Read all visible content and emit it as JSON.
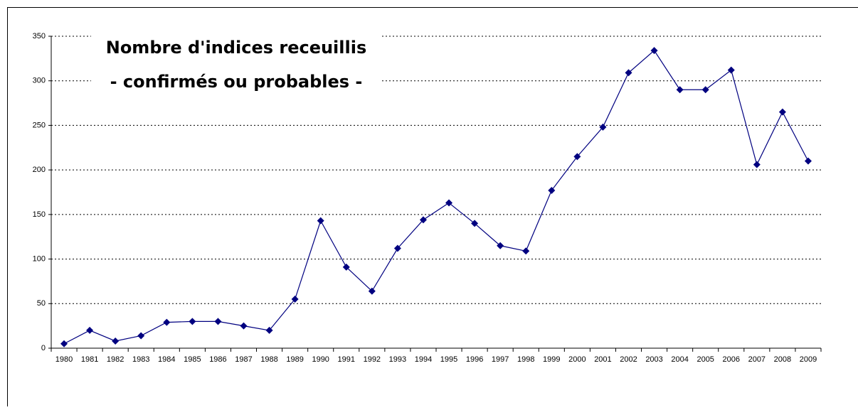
{
  "chart_data": {
    "type": "line",
    "title": "Nombre d'indices receuillis",
    "subtitle": "- confirmés ou probables -",
    "categories": [
      "1980",
      "1981",
      "1982",
      "1983",
      "1984",
      "1985",
      "1986",
      "1987",
      "1988",
      "1989",
      "1990",
      "1991",
      "1992",
      "1993",
      "1994",
      "1995",
      "1996",
      "1997",
      "1998",
      "1999",
      "2000",
      "2001",
      "2002",
      "2003",
      "2004",
      "2005",
      "2006",
      "2007",
      "2008",
      "2009"
    ],
    "values": [
      5,
      20,
      8,
      14,
      29,
      30,
      30,
      25,
      20,
      55,
      143,
      91,
      64,
      112,
      144,
      163,
      140,
      115,
      109,
      177,
      215,
      248,
      309,
      334,
      290,
      290,
      312,
      206,
      265,
      210
    ],
    "color": "#000080",
    "ylim": [
      0,
      350
    ],
    "yticks": [
      0,
      50,
      100,
      150,
      200,
      250,
      300,
      350
    ],
    "grid": true
  }
}
